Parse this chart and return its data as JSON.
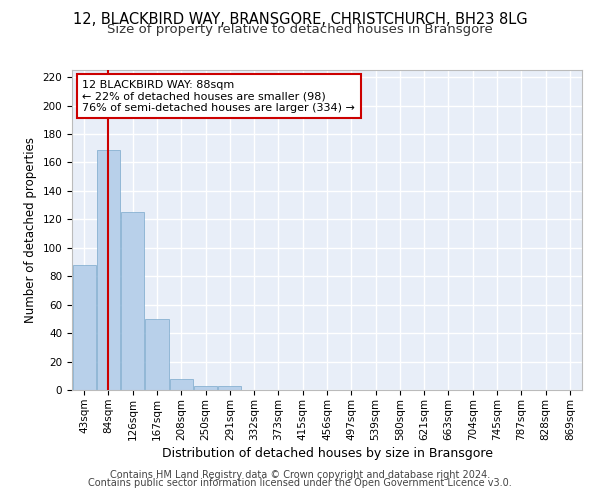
{
  "title": "12, BLACKBIRD WAY, BRANSGORE, CHRISTCHURCH, BH23 8LG",
  "subtitle": "Size of property relative to detached houses in Bransgore",
  "xlabel": "Distribution of detached houses by size in Bransgore",
  "ylabel": "Number of detached properties",
  "bar_labels": [
    "43sqm",
    "84sqm",
    "126sqm",
    "167sqm",
    "208sqm",
    "250sqm",
    "291sqm",
    "332sqm",
    "373sqm",
    "415sqm",
    "456sqm",
    "497sqm",
    "539sqm",
    "580sqm",
    "621sqm",
    "663sqm",
    "704sqm",
    "745sqm",
    "787sqm",
    "828sqm",
    "869sqm"
  ],
  "bar_values": [
    88,
    169,
    125,
    50,
    8,
    3,
    3,
    0,
    0,
    0,
    0,
    0,
    0,
    0,
    0,
    0,
    0,
    0,
    0,
    0,
    0
  ],
  "bar_color": "#b8d0ea",
  "bar_edge_color": "#7aa8cc",
  "vline_x": 1,
  "vline_color": "#cc0000",
  "annotation_text": "12 BLACKBIRD WAY: 88sqm\n← 22% of detached houses are smaller (98)\n76% of semi-detached houses are larger (334) →",
  "annotation_box_color": "#ffffff",
  "annotation_box_edge": "#cc0000",
  "ylim": [
    0,
    225
  ],
  "yticks": [
    0,
    20,
    40,
    60,
    80,
    100,
    120,
    140,
    160,
    180,
    200,
    220
  ],
  "bg_color": "#e8eef8",
  "grid_color": "#ffffff",
  "footer_line1": "Contains HM Land Registry data © Crown copyright and database right 2024.",
  "footer_line2": "Contains public sector information licensed under the Open Government Licence v3.0.",
  "title_fontsize": 10.5,
  "subtitle_fontsize": 9.5,
  "ylabel_fontsize": 8.5,
  "xlabel_fontsize": 9,
  "tick_fontsize": 7.5,
  "annotation_fontsize": 8,
  "footer_fontsize": 7
}
